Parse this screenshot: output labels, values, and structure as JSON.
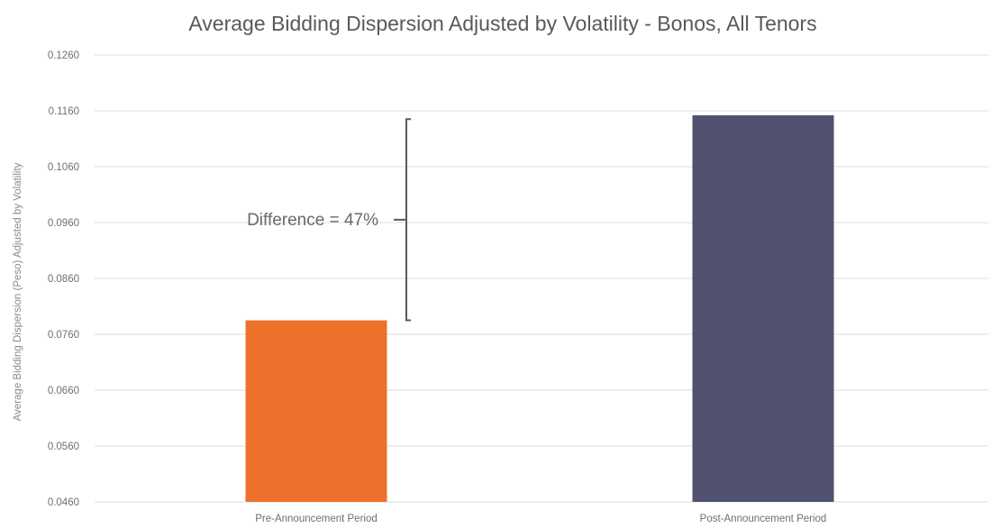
{
  "chart_data": {
    "type": "bar",
    "title": "Average Bidding Dispersion Adjusted by Volatility - Bonos, All Tenors",
    "ylabel": "Average Bidding Dispersion (Peso) Adjusted by Volatility",
    "xlabel": "",
    "categories": [
      "Pre-Announcement Period",
      "Post-Announcement Period"
    ],
    "values": [
      0.0785,
      0.1152
    ],
    "bar_colors": [
      "#ed712b",
      "#51526f"
    ],
    "ylim": [
      0.046,
      0.126
    ],
    "yticks": [
      "0.0460",
      "0.0560",
      "0.0660",
      "0.0760",
      "0.0860",
      "0.0960",
      "0.1060",
      "0.1160",
      "0.1260"
    ],
    "grid": true,
    "legend": "none",
    "annotation": {
      "text": "Difference =  47%",
      "from": 0.0785,
      "to": 0.1145
    }
  }
}
